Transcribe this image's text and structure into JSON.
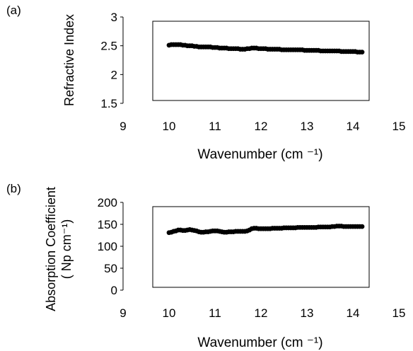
{
  "chart_data": [
    {
      "panel_label": "(a)",
      "type": "scatter",
      "xlabel": "Wavenumber (cm ⁻¹)",
      "ylabel": "Refractive Index",
      "ylabel2": "",
      "xlim": [
        9,
        15
      ],
      "ylim": [
        1.5,
        3
      ],
      "xticks": [
        "9",
        "10",
        "11",
        "12",
        "13",
        "14",
        "15"
      ],
      "yticks": [
        "1.5",
        "2",
        "2.5",
        "3"
      ],
      "grid": false,
      "x": [
        10.0,
        10.05,
        10.1,
        10.15,
        10.2,
        10.25,
        10.3,
        10.35,
        10.4,
        10.45,
        10.5,
        10.55,
        10.6,
        10.65,
        10.7,
        10.75,
        10.8,
        10.85,
        10.9,
        10.95,
        11.0,
        11.05,
        11.1,
        11.15,
        11.2,
        11.25,
        11.3,
        11.35,
        11.4,
        11.45,
        11.5,
        11.55,
        11.6,
        11.65,
        11.7,
        11.75,
        11.8,
        11.85,
        11.9,
        11.95,
        12.0,
        12.05,
        12.1,
        12.15,
        12.2,
        12.25,
        12.3,
        12.35,
        12.4,
        12.45,
        12.5,
        12.55,
        12.6,
        12.65,
        12.7,
        12.75,
        12.8,
        12.85,
        12.9,
        12.95,
        13.0,
        13.05,
        13.1,
        13.15,
        13.2,
        13.25,
        13.3,
        13.35,
        13.4,
        13.45,
        13.5,
        13.55,
        13.6,
        13.65,
        13.7,
        13.75,
        13.8,
        13.85,
        13.9,
        13.95,
        14.0,
        14.05,
        14.1,
        14.15,
        14.2
      ],
      "y": [
        2.51,
        2.52,
        2.52,
        2.52,
        2.52,
        2.52,
        2.51,
        2.51,
        2.5,
        2.5,
        2.5,
        2.49,
        2.49,
        2.48,
        2.48,
        2.48,
        2.48,
        2.48,
        2.48,
        2.47,
        2.47,
        2.47,
        2.46,
        2.46,
        2.46,
        2.46,
        2.45,
        2.45,
        2.45,
        2.45,
        2.45,
        2.44,
        2.44,
        2.44,
        2.45,
        2.45,
        2.46,
        2.46,
        2.46,
        2.45,
        2.45,
        2.45,
        2.45,
        2.44,
        2.44,
        2.44,
        2.44,
        2.44,
        2.44,
        2.43,
        2.43,
        2.43,
        2.43,
        2.43,
        2.43,
        2.43,
        2.43,
        2.43,
        2.43,
        2.42,
        2.42,
        2.42,
        2.42,
        2.42,
        2.42,
        2.42,
        2.41,
        2.41,
        2.41,
        2.41,
        2.41,
        2.41,
        2.41,
        2.41,
        2.41,
        2.4,
        2.4,
        2.4,
        2.4,
        2.4,
        2.4,
        2.4,
        2.39,
        2.39,
        2.39
      ]
    },
    {
      "panel_label": "(b)",
      "type": "scatter",
      "xlabel": "Wavenumber (cm ⁻¹)",
      "ylabel": "Absorption Coefficient",
      "ylabel2": "( Np cm⁻¹)",
      "xlim": [
        9,
        15
      ],
      "ylim": [
        0,
        200
      ],
      "xticks": [
        "9",
        "10",
        "11",
        "12",
        "13",
        "14",
        "15"
      ],
      "yticks": [
        "0",
        "50",
        "100",
        "150",
        "200"
      ],
      "grid": false,
      "x": [
        10.0,
        10.05,
        10.1,
        10.15,
        10.2,
        10.25,
        10.3,
        10.35,
        10.4,
        10.45,
        10.5,
        10.55,
        10.6,
        10.65,
        10.7,
        10.75,
        10.8,
        10.85,
        10.9,
        10.95,
        11.0,
        11.05,
        11.1,
        11.15,
        11.2,
        11.25,
        11.3,
        11.35,
        11.4,
        11.45,
        11.5,
        11.55,
        11.6,
        11.65,
        11.7,
        11.75,
        11.8,
        11.85,
        11.9,
        11.95,
        12.0,
        12.05,
        12.1,
        12.15,
        12.2,
        12.25,
        12.3,
        12.35,
        12.4,
        12.45,
        12.5,
        12.55,
        12.6,
        12.65,
        12.7,
        12.75,
        12.8,
        12.85,
        12.9,
        12.95,
        13.0,
        13.05,
        13.1,
        13.15,
        13.2,
        13.25,
        13.3,
        13.35,
        13.4,
        13.45,
        13.5,
        13.55,
        13.6,
        13.65,
        13.7,
        13.75,
        13.8,
        13.85,
        13.9,
        13.95,
        14.0,
        14.05,
        14.1,
        14.15,
        14.2
      ],
      "y": [
        131,
        132,
        134,
        135,
        137,
        137,
        136,
        136,
        137,
        138,
        137,
        136,
        135,
        133,
        132,
        132,
        133,
        133,
        134,
        135,
        135,
        135,
        134,
        133,
        132,
        132,
        133,
        133,
        133,
        134,
        134,
        134,
        134,
        134,
        135,
        137,
        140,
        141,
        141,
        140,
        140,
        140,
        140,
        140,
        140,
        141,
        141,
        141,
        141,
        141,
        142,
        142,
        142,
        142,
        142,
        142,
        143,
        143,
        143,
        143,
        143,
        143,
        143,
        143,
        143,
        144,
        144,
        144,
        144,
        144,
        144,
        145,
        145,
        146,
        146,
        146,
        145,
        145,
        145,
        145,
        145,
        145,
        145,
        145,
        145
      ]
    }
  ]
}
